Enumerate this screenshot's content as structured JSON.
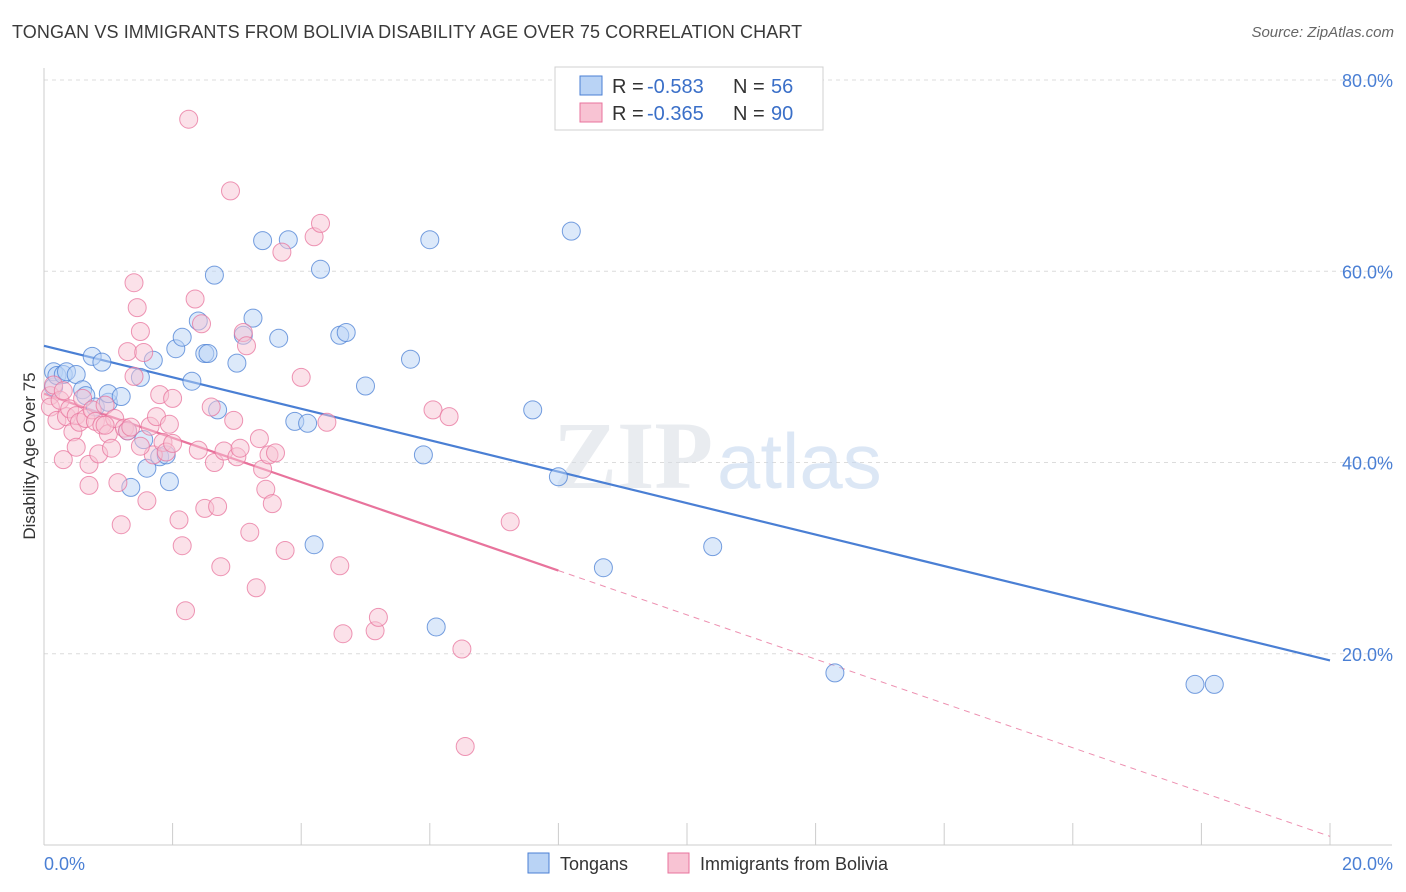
{
  "title": "TONGAN VS IMMIGRANTS FROM BOLIVIA DISABILITY AGE OVER 75 CORRELATION CHART",
  "source": "Source: ZipAtlas.com",
  "watermark": {
    "zip": "ZIP",
    "atlas": "atlas"
  },
  "colors": {
    "blue": "#4a7fd4",
    "pink": "#e8739c",
    "blue_fill": "#b9d3f5",
    "pink_fill": "#f8c3d3"
  },
  "legend": {
    "rows": [
      {
        "r_label": "R =",
        "r_value": "-0.583",
        "n_label": "N =",
        "n_value": "56"
      },
      {
        "r_label": "R =",
        "r_value": "-0.365",
        "n_label": "N =",
        "n_value": "90"
      }
    ]
  },
  "bottom_legend": [
    "Tongans",
    "Immigrants from Bolivia"
  ],
  "chart_data": {
    "type": "scatter",
    "title": "TONGAN VS IMMIGRANTS FROM BOLIVIA DISABILITY AGE OVER 75 CORRELATION CHART",
    "xlabel": "",
    "ylabel": "Disability Age Over 75",
    "xlim": [
      0,
      20
    ],
    "ylim": [
      0,
      80
    ],
    "x_tick_labels": [
      "0.0%",
      "20.0%"
    ],
    "y_ticks": [
      20,
      40,
      60,
      80
    ],
    "y_tick_labels": [
      "20.0%",
      "40.0%",
      "60.0%",
      "80.0%"
    ],
    "series": [
      {
        "name": "Tongans",
        "r": -0.583,
        "n": 56,
        "trend": {
          "x": [
            0,
            20
          ],
          "y": [
            52.2,
            19.3
          ]
        },
        "points": [
          [
            0.15,
            47.9
          ],
          [
            0.15,
            49.5
          ],
          [
            0.2,
            49.1
          ],
          [
            0.3,
            49.2
          ],
          [
            0.35,
            49.5
          ],
          [
            0.5,
            49.2
          ],
          [
            0.6,
            47.6
          ],
          [
            0.65,
            47.0
          ],
          [
            0.75,
            51.1
          ],
          [
            0.8,
            45.8
          ],
          [
            0.9,
            50.5
          ],
          [
            1.0,
            46.3
          ],
          [
            1.0,
            47.2
          ],
          [
            1.2,
            46.9
          ],
          [
            1.3,
            43.3
          ],
          [
            1.35,
            37.4
          ],
          [
            1.5,
            48.9
          ],
          [
            1.55,
            42.4
          ],
          [
            1.6,
            39.4
          ],
          [
            1.7,
            50.7
          ],
          [
            1.8,
            40.6
          ],
          [
            1.9,
            40.8
          ],
          [
            1.95,
            38.0
          ],
          [
            2.05,
            51.9
          ],
          [
            2.15,
            53.1
          ],
          [
            2.3,
            48.5
          ],
          [
            2.4,
            54.8
          ],
          [
            2.5,
            51.4
          ],
          [
            2.55,
            51.4
          ],
          [
            2.65,
            59.6
          ],
          [
            2.7,
            45.5
          ],
          [
            3.0,
            50.4
          ],
          [
            3.1,
            53.3
          ],
          [
            3.25,
            55.1
          ],
          [
            3.4,
            63.2
          ],
          [
            3.65,
            53.0
          ],
          [
            3.8,
            63.3
          ],
          [
            3.9,
            44.3
          ],
          [
            4.1,
            44.1
          ],
          [
            4.2,
            31.4
          ],
          [
            4.3,
            60.2
          ],
          [
            4.6,
            53.3
          ],
          [
            4.7,
            53.6
          ],
          [
            5.0,
            48.0
          ],
          [
            5.7,
            50.8
          ],
          [
            5.9,
            40.8
          ],
          [
            6.0,
            63.3
          ],
          [
            6.1,
            22.8
          ],
          [
            7.6,
            45.5
          ],
          [
            8.0,
            38.5
          ],
          [
            8.2,
            64.2
          ],
          [
            8.7,
            29.0
          ],
          [
            10.4,
            31.2
          ],
          [
            12.3,
            18.0
          ],
          [
            17.9,
            16.8
          ],
          [
            18.2,
            16.8
          ]
        ]
      },
      {
        "name": "Immigrants from Bolivia",
        "r": -0.365,
        "n": 90,
        "trend": {
          "x": [
            0,
            8
          ],
          "y": [
            47.2,
            28.7
          ]
        },
        "trend_dashed": {
          "x": [
            8,
            20
          ],
          "y": [
            28.7,
            0.9
          ]
        },
        "points": [
          [
            0.1,
            47.0
          ],
          [
            0.1,
            45.8
          ],
          [
            0.15,
            48.1
          ],
          [
            0.2,
            44.4
          ],
          [
            0.25,
            46.5
          ],
          [
            0.3,
            47.5
          ],
          [
            0.35,
            44.8
          ],
          [
            0.4,
            45.6
          ],
          [
            0.45,
            43.2
          ],
          [
            0.5,
            44.9
          ],
          [
            0.55,
            44.2
          ],
          [
            0.6,
            46.7
          ],
          [
            0.65,
            44.6
          ],
          [
            0.7,
            39.8
          ],
          [
            0.7,
            37.6
          ],
          [
            0.75,
            45.5
          ],
          [
            0.8,
            44.3
          ],
          [
            0.85,
            40.9
          ],
          [
            0.9,
            43.9
          ],
          [
            0.95,
            46.0
          ],
          [
            1.0,
            43.0
          ],
          [
            1.05,
            41.5
          ],
          [
            1.1,
            44.6
          ],
          [
            1.15,
            37.9
          ],
          [
            1.2,
            33.5
          ],
          [
            1.25,
            43.6
          ],
          [
            1.3,
            51.6
          ],
          [
            1.3,
            43.3
          ],
          [
            1.35,
            43.7
          ],
          [
            1.4,
            49.0
          ],
          [
            1.4,
            58.8
          ],
          [
            1.45,
            56.2
          ],
          [
            1.5,
            53.7
          ],
          [
            1.55,
            51.5
          ],
          [
            1.6,
            36.0
          ],
          [
            1.65,
            43.8
          ],
          [
            1.7,
            40.8
          ],
          [
            1.75,
            44.8
          ],
          [
            1.8,
            47.1
          ],
          [
            1.85,
            42.1
          ],
          [
            1.9,
            41.1
          ],
          [
            1.95,
            44.0
          ],
          [
            2.0,
            42.0
          ],
          [
            2.1,
            34.0
          ],
          [
            2.15,
            31.3
          ],
          [
            2.2,
            24.5
          ],
          [
            2.25,
            75.9
          ],
          [
            2.35,
            57.1
          ],
          [
            2.4,
            41.3
          ],
          [
            2.45,
            54.5
          ],
          [
            2.5,
            35.2
          ],
          [
            2.6,
            45.8
          ],
          [
            2.65,
            40.0
          ],
          [
            2.7,
            35.4
          ],
          [
            2.75,
            29.1
          ],
          [
            2.8,
            41.2
          ],
          [
            2.9,
            68.4
          ],
          [
            2.95,
            44.4
          ],
          [
            3.0,
            40.6
          ],
          [
            3.05,
            41.5
          ],
          [
            3.1,
            53.6
          ],
          [
            3.15,
            52.2
          ],
          [
            3.2,
            32.7
          ],
          [
            3.3,
            26.9
          ],
          [
            3.35,
            42.5
          ],
          [
            3.4,
            39.3
          ],
          [
            3.45,
            37.2
          ],
          [
            3.5,
            40.8
          ],
          [
            3.55,
            35.7
          ],
          [
            3.6,
            41.0
          ],
          [
            3.7,
            62.0
          ],
          [
            3.75,
            30.8
          ],
          [
            4.0,
            48.9
          ],
          [
            4.2,
            63.6
          ],
          [
            4.3,
            65.0
          ],
          [
            4.4,
            44.2
          ],
          [
            4.6,
            29.2
          ],
          [
            4.65,
            22.1
          ],
          [
            5.15,
            22.4
          ],
          [
            5.2,
            23.8
          ],
          [
            6.05,
            45.5
          ],
          [
            6.3,
            44.8
          ],
          [
            6.5,
            20.5
          ],
          [
            6.55,
            10.3
          ],
          [
            7.25,
            33.8
          ],
          [
            0.3,
            40.3
          ],
          [
            0.5,
            41.6
          ],
          [
            0.95,
            43.9
          ],
          [
            1.5,
            41.7
          ],
          [
            2.0,
            46.7
          ]
        ]
      }
    ]
  }
}
